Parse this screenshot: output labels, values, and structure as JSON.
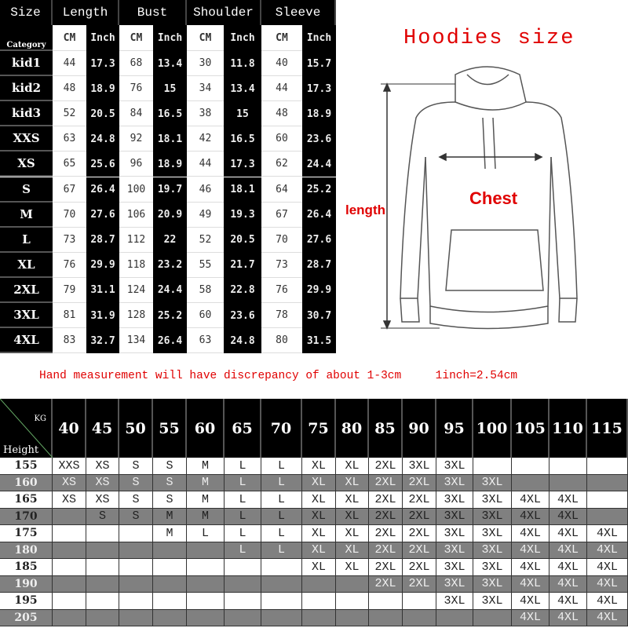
{
  "size_table": {
    "headers": [
      "Size",
      "Length",
      "Bust",
      "Shoulder",
      "Sleeve"
    ],
    "category_label": "Category",
    "units": [
      "CM",
      "Inch",
      "CM",
      "Inch",
      "CM",
      "Inch",
      "CM",
      "Inch"
    ],
    "rows": [
      [
        "kid1",
        "44",
        "17.3",
        "68",
        "13.4",
        "30",
        "11.8",
        "40",
        "15.7"
      ],
      [
        "kid2",
        "48",
        "18.9",
        "76",
        "15",
        "34",
        "13.4",
        "44",
        "17.3"
      ],
      [
        "kid3",
        "52",
        "20.5",
        "84",
        "16.5",
        "38",
        "15",
        "48",
        "18.9"
      ],
      [
        "XXS",
        "63",
        "24.8",
        "92",
        "18.1",
        "42",
        "16.5",
        "60",
        "23.6"
      ],
      [
        "XS",
        "65",
        "25.6",
        "96",
        "18.9",
        "44",
        "17.3",
        "62",
        "24.4"
      ],
      [
        "S",
        "67",
        "26.4",
        "100",
        "19.7",
        "46",
        "18.1",
        "64",
        "25.2"
      ],
      [
        "M",
        "70",
        "27.6",
        "106",
        "20.9",
        "49",
        "19.3",
        "67",
        "26.4"
      ],
      [
        "L",
        "73",
        "28.7",
        "112",
        "22",
        "52",
        "20.5",
        "70",
        "27.6"
      ],
      [
        "XL",
        "76",
        "29.9",
        "118",
        "23.2",
        "55",
        "21.7",
        "73",
        "28.7"
      ],
      [
        "2XL",
        "79",
        "31.1",
        "124",
        "24.4",
        "58",
        "22.8",
        "76",
        "29.9"
      ],
      [
        "3XL",
        "81",
        "31.9",
        "128",
        "25.2",
        "60",
        "23.6",
        "78",
        "30.7"
      ],
      [
        "4XL",
        "83",
        "32.7",
        "134",
        "26.4",
        "63",
        "24.8",
        "80",
        "31.5"
      ]
    ]
  },
  "diagram": {
    "title": "Hoodies size",
    "chest_label": "Chest",
    "length_label": "length",
    "accent": "#e00000"
  },
  "note": "Hand measurement will have discrepancy of about 1-3cm     1inch=2.54cm",
  "fit_table": {
    "kg_label": "KG",
    "height_label": "Height",
    "weights": [
      "40",
      "45",
      "50",
      "55",
      "60",
      "65",
      "70",
      "75",
      "80",
      "85",
      "90",
      "95",
      "100",
      "105",
      "110",
      "115"
    ],
    "rows": [
      [
        "155",
        "XXS",
        "XS",
        "S",
        "S",
        "M",
        "L",
        "L",
        "XL",
        "XL",
        "2XL",
        "3XL",
        "3XL",
        "",
        "",
        "",
        ""
      ],
      [
        "160",
        "XS",
        "XS",
        "S",
        "S",
        "M",
        "L",
        "L",
        "XL",
        "XL",
        "2XL",
        "2XL",
        "3XL",
        "3XL",
        "",
        "",
        ""
      ],
      [
        "165",
        "XS",
        "XS",
        "S",
        "S",
        "M",
        "L",
        "L",
        "XL",
        "XL",
        "2XL",
        "2XL",
        "3XL",
        "3XL",
        "4XL",
        "4XL",
        ""
      ],
      [
        "170",
        "",
        "S",
        "S",
        "M",
        "M",
        "L",
        "L",
        "XL",
        "XL",
        "2XL",
        "2XL",
        "3XL",
        "3XL",
        "4XL",
        "4XL",
        ""
      ],
      [
        "175",
        "",
        "",
        "",
        "M",
        "L",
        "L",
        "L",
        "XL",
        "XL",
        "2XL",
        "2XL",
        "3XL",
        "3XL",
        "4XL",
        "4XL",
        "4XL"
      ],
      [
        "180",
        "",
        "",
        "",
        "",
        "",
        "L",
        "L",
        "XL",
        "XL",
        "2XL",
        "2XL",
        "3XL",
        "3XL",
        "4XL",
        "4XL",
        "4XL"
      ],
      [
        "185",
        "",
        "",
        "",
        "",
        "",
        "",
        "",
        "XL",
        "XL",
        "2XL",
        "2XL",
        "3XL",
        "3XL",
        "4XL",
        "4XL",
        "4XL"
      ],
      [
        "190",
        "",
        "",
        "",
        "",
        "",
        "",
        "",
        "",
        "",
        "2XL",
        "2XL",
        "3XL",
        "3XL",
        "4XL",
        "4XL",
        "4XL"
      ],
      [
        "195",
        "",
        "",
        "",
        "",
        "",
        "",
        "",
        "",
        "",
        "",
        "",
        "3XL",
        "3XL",
        "4XL",
        "4XL",
        "4XL"
      ],
      [
        "205",
        "",
        "",
        "",
        "",
        "",
        "",
        "",
        "",
        "",
        "",
        "",
        "",
        "",
        "4XL",
        "4XL",
        "4XL"
      ]
    ]
  }
}
